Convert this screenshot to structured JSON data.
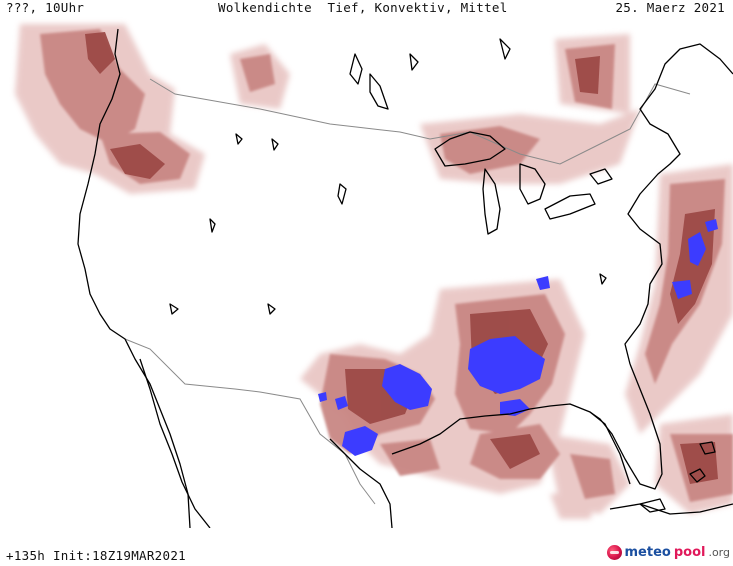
{
  "header": {
    "location_time": "???, 10Uhr",
    "title": "Wolkendichte  Tief, Konvektiv, Mittel",
    "date": "25. Maerz 2021"
  },
  "footer": {
    "run_info": "+135h Init:18Z19MAR2021"
  },
  "logo": {
    "name_part1": "meteo",
    "name_part2": "pool",
    "name_part3": ".org"
  },
  "colors": {
    "cloud_light": "#e8c4c2",
    "cloud_medium": "#c98784",
    "cloud_dark": "#9c4a47",
    "convective": "#3c3cff",
    "coastline": "#000000",
    "border": "#8a8a8a"
  }
}
